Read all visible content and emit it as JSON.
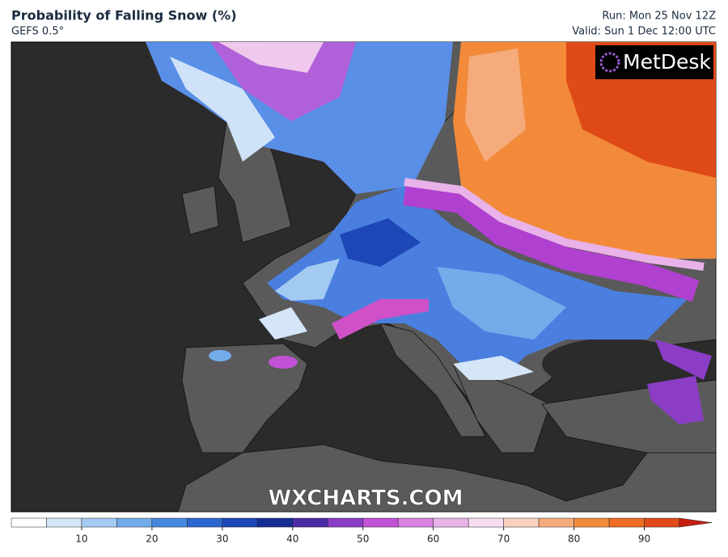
{
  "header": {
    "title": "Probability of Falling Snow (%)",
    "model": "GEFS 0.5°",
    "run": "Run: Mon 25 Nov 12Z",
    "valid": "Valid: Sun 1 Dec 12:00 UTC"
  },
  "logo": "MetDesk",
  "watermark": "WXCHARTS.COM",
  "colorbar": {
    "lim": [
      0,
      95
    ],
    "ticks": [
      10,
      20,
      30,
      40,
      50,
      60,
      70,
      80,
      90
    ],
    "colors": [
      "#ffffff",
      "#d4e6f8",
      "#a3cbf2",
      "#73aceb",
      "#4689df",
      "#2c67cf",
      "#1d47b6",
      "#142c94",
      "#4b2ba6",
      "#8b3dc6",
      "#c152d6",
      "#d982df",
      "#e9b2e8",
      "#f6def0",
      "#f8d2bd",
      "#f5ab7b",
      "#f28b3b",
      "#ee6b21",
      "#e04b19"
    ],
    "over_color": "#c81e10"
  }
}
